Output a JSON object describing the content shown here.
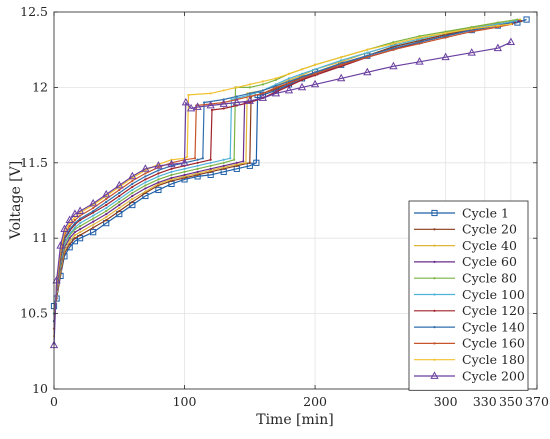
{
  "chart_data": {
    "type": "line",
    "title": "",
    "xlabel": "Time [min]",
    "ylabel": "Voltage [V]",
    "xlim": [
      0,
      370
    ],
    "ylim": [
      10,
      12.5
    ],
    "x_ticks": [
      0,
      100,
      200,
      300,
      330,
      350,
      370
    ],
    "y_ticks": [
      10,
      10.5,
      11,
      11.5,
      12,
      12.5
    ],
    "grid": true,
    "legend_position": "bottom-right",
    "series": [
      {
        "name": "Cycle 1",
        "color": "#1f5fa8",
        "marker": "square",
        "x": [
          0,
          2,
          5,
          8,
          12,
          16,
          20,
          30,
          40,
          50,
          60,
          70,
          80,
          90,
          100,
          110,
          120,
          130,
          140,
          150,
          155,
          156,
          160,
          170,
          180,
          190,
          200,
          220,
          240,
          260,
          280,
          300,
          320,
          340,
          355,
          362
        ],
        "y": [
          10.55,
          10.6,
          10.75,
          10.88,
          10.94,
          10.98,
          11.0,
          11.04,
          11.1,
          11.16,
          11.22,
          11.28,
          11.32,
          11.36,
          11.39,
          11.41,
          11.42,
          11.44,
          11.46,
          11.48,
          11.5,
          11.95,
          11.95,
          11.98,
          12.02,
          12.06,
          12.1,
          12.15,
          12.21,
          12.27,
          12.31,
          12.35,
          12.38,
          12.41,
          12.43,
          12.45
        ]
      },
      {
        "name": "Cycle 20",
        "color": "#8a3a1a",
        "marker": "dot",
        "x": [
          0,
          2,
          5,
          8,
          12,
          16,
          20,
          30,
          40,
          50,
          60,
          70,
          80,
          90,
          100,
          110,
          120,
          130,
          140,
          150,
          151,
          160,
          170,
          180,
          190,
          200,
          220,
          240,
          260,
          280,
          300,
          320,
          340,
          358
        ],
        "y": [
          10.5,
          10.6,
          10.76,
          10.9,
          10.96,
          11.0,
          11.02,
          11.07,
          11.12,
          11.18,
          11.24,
          11.3,
          11.35,
          11.38,
          11.4,
          11.42,
          11.44,
          11.46,
          11.48,
          11.5,
          11.94,
          11.96,
          11.99,
          12.03,
          12.07,
          12.1,
          12.16,
          12.21,
          12.27,
          12.31,
          12.35,
          12.39,
          12.42,
          12.44
        ]
      },
      {
        "name": "Cycle 40",
        "color": "#e0b63a",
        "marker": "dot",
        "x": [
          0,
          2,
          5,
          8,
          12,
          16,
          20,
          30,
          40,
          50,
          60,
          70,
          80,
          90,
          100,
          110,
          120,
          130,
          140,
          147,
          148,
          160,
          170,
          180,
          190,
          200,
          220,
          240,
          260,
          280,
          300,
          320,
          340,
          357
        ],
        "y": [
          10.5,
          10.62,
          10.78,
          10.92,
          10.98,
          11.02,
          11.04,
          11.09,
          11.14,
          11.2,
          11.26,
          11.31,
          11.36,
          11.39,
          11.41,
          11.43,
          11.45,
          11.47,
          11.49,
          11.5,
          11.96,
          11.98,
          12.01,
          12.05,
          12.08,
          12.12,
          12.17,
          12.23,
          12.28,
          12.32,
          12.36,
          12.4,
          12.43,
          12.45
        ]
      },
      {
        "name": "Cycle 60",
        "color": "#6a2c8c",
        "marker": "dot",
        "x": [
          0,
          2,
          5,
          8,
          12,
          16,
          20,
          30,
          40,
          50,
          60,
          70,
          80,
          90,
          100,
          110,
          120,
          130,
          140,
          145,
          146,
          160,
          170,
          180,
          190,
          200,
          220,
          240,
          260,
          280,
          300,
          320,
          340,
          356
        ],
        "y": [
          10.5,
          10.63,
          10.8,
          10.94,
          11.0,
          11.04,
          11.06,
          11.11,
          11.16,
          11.22,
          11.28,
          11.33,
          11.37,
          11.4,
          11.42,
          11.44,
          11.46,
          11.48,
          11.5,
          11.51,
          11.9,
          11.93,
          11.97,
          12.01,
          12.05,
          12.09,
          12.14,
          12.2,
          12.25,
          12.3,
          12.34,
          12.38,
          12.41,
          12.44
        ]
      },
      {
        "name": "Cycle 80",
        "color": "#7cb342",
        "marker": "dot",
        "x": [
          0,
          2,
          5,
          8,
          12,
          16,
          20,
          30,
          40,
          50,
          60,
          70,
          80,
          90,
          100,
          110,
          120,
          130,
          138,
          139,
          150,
          160,
          170,
          180,
          190,
          200,
          220,
          240,
          260,
          280,
          300,
          320,
          340,
          355
        ],
        "y": [
          10.5,
          10.64,
          10.82,
          10.96,
          11.02,
          11.06,
          11.08,
          11.13,
          11.18,
          11.24,
          11.3,
          11.35,
          11.39,
          11.42,
          11.44,
          11.46,
          11.48,
          11.5,
          11.52,
          12.0,
          12.0,
          12.02,
          12.05,
          12.09,
          12.12,
          12.15,
          12.2,
          12.25,
          12.3,
          12.34,
          12.37,
          12.4,
          12.43,
          12.45
        ]
      },
      {
        "name": "Cycle 100",
        "color": "#4fb3d9",
        "marker": "dot",
        "x": [
          0,
          2,
          5,
          8,
          12,
          16,
          20,
          30,
          40,
          50,
          60,
          70,
          80,
          90,
          100,
          110,
          120,
          130,
          135,
          136,
          150,
          160,
          170,
          180,
          190,
          200,
          220,
          240,
          260,
          280,
          300,
          320,
          340,
          354
        ],
        "y": [
          10.5,
          10.65,
          10.84,
          10.97,
          11.03,
          11.07,
          11.1,
          11.15,
          11.2,
          11.26,
          11.32,
          11.37,
          11.41,
          11.44,
          11.46,
          11.48,
          11.5,
          11.52,
          11.53,
          11.92,
          11.95,
          11.98,
          12.02,
          12.06,
          12.09,
          12.12,
          12.18,
          12.23,
          12.28,
          12.32,
          12.36,
          12.39,
          12.42,
          12.44
        ]
      },
      {
        "name": "Cycle 120",
        "color": "#a0222a",
        "marker": "dot",
        "x": [
          0,
          2,
          5,
          8,
          12,
          16,
          20,
          30,
          40,
          50,
          60,
          70,
          80,
          90,
          100,
          110,
          120,
          121,
          130,
          140,
          150,
          160,
          170,
          180,
          190,
          200,
          220,
          240,
          260,
          280,
          300,
          320,
          340,
          353
        ],
        "y": [
          10.45,
          10.66,
          10.86,
          10.99,
          11.05,
          11.09,
          11.12,
          11.17,
          11.22,
          11.28,
          11.34,
          11.39,
          11.43,
          11.46,
          11.48,
          11.5,
          11.52,
          11.85,
          11.86,
          11.88,
          11.9,
          11.93,
          11.97,
          12.01,
          12.05,
          12.08,
          12.14,
          12.2,
          12.25,
          12.3,
          12.34,
          12.38,
          12.41,
          12.43
        ]
      },
      {
        "name": "Cycle 140",
        "color": "#2f6fad",
        "marker": "dot",
        "x": [
          0,
          2,
          5,
          8,
          12,
          16,
          20,
          30,
          40,
          50,
          60,
          70,
          80,
          90,
          100,
          110,
          114,
          115,
          130,
          140,
          150,
          160,
          170,
          180,
          190,
          200,
          220,
          240,
          260,
          280,
          300,
          320,
          340,
          352
        ],
        "y": [
          10.45,
          10.67,
          10.88,
          11.0,
          11.06,
          11.1,
          11.13,
          11.18,
          11.24,
          11.3,
          11.36,
          11.41,
          11.45,
          11.48,
          11.5,
          11.52,
          11.53,
          11.9,
          11.92,
          11.94,
          11.96,
          11.98,
          12.01,
          12.04,
          12.07,
          12.1,
          12.16,
          12.21,
          12.26,
          12.3,
          12.34,
          12.38,
          12.41,
          12.43
        ]
      },
      {
        "name": "Cycle 160",
        "color": "#c8542a",
        "marker": "dot",
        "x": [
          0,
          2,
          5,
          8,
          12,
          16,
          20,
          30,
          40,
          50,
          60,
          70,
          80,
          90,
          100,
          108,
          109,
          120,
          130,
          140,
          150,
          160,
          170,
          180,
          190,
          200,
          220,
          240,
          260,
          280,
          300,
          320,
          340,
          351
        ],
        "y": [
          10.4,
          10.68,
          10.9,
          11.02,
          11.08,
          11.12,
          11.15,
          11.2,
          11.26,
          11.32,
          11.38,
          11.43,
          11.47,
          11.5,
          11.52,
          11.53,
          11.88,
          11.89,
          11.9,
          11.92,
          11.94,
          11.96,
          12.0,
          12.03,
          12.06,
          12.09,
          12.15,
          12.2,
          12.25,
          12.29,
          12.33,
          12.37,
          12.4,
          12.42
        ]
      },
      {
        "name": "Cycle 180",
        "color": "#f2c12e",
        "marker": "dot",
        "x": [
          0,
          2,
          5,
          8,
          12,
          16,
          20,
          30,
          40,
          50,
          60,
          70,
          80,
          90,
          100,
          102,
          103,
          120,
          130,
          140,
          150,
          160,
          170,
          180,
          190,
          200,
          220,
          240,
          260,
          280,
          300,
          320,
          340,
          350
        ],
        "y": [
          10.35,
          10.7,
          10.92,
          11.04,
          11.1,
          11.14,
          11.17,
          11.22,
          11.28,
          11.34,
          11.4,
          11.45,
          11.49,
          11.52,
          11.53,
          11.54,
          11.95,
          11.96,
          11.98,
          12.0,
          12.02,
          12.04,
          12.06,
          12.09,
          12.12,
          12.15,
          12.2,
          12.25,
          12.29,
          12.33,
          12.36,
          12.39,
          12.41,
          12.42
        ]
      },
      {
        "name": "Cycle 200",
        "color": "#6a3fa0",
        "marker": "triangle",
        "x": [
          0,
          2,
          5,
          8,
          12,
          16,
          20,
          30,
          40,
          50,
          60,
          70,
          80,
          90,
          100,
          101,
          105,
          110,
          120,
          130,
          140,
          150,
          160,
          170,
          180,
          190,
          200,
          220,
          240,
          260,
          280,
          300,
          320,
          340,
          350
        ],
        "y": [
          10.29,
          10.72,
          10.95,
          11.06,
          11.12,
          11.16,
          11.18,
          11.23,
          11.29,
          11.35,
          11.41,
          11.46,
          11.48,
          11.49,
          11.5,
          11.9,
          11.86,
          11.87,
          11.88,
          11.89,
          11.9,
          11.91,
          11.93,
          11.96,
          11.98,
          12.0,
          12.02,
          12.06,
          12.1,
          12.14,
          12.17,
          12.2,
          12.23,
          12.26,
          12.3
        ]
      }
    ]
  }
}
